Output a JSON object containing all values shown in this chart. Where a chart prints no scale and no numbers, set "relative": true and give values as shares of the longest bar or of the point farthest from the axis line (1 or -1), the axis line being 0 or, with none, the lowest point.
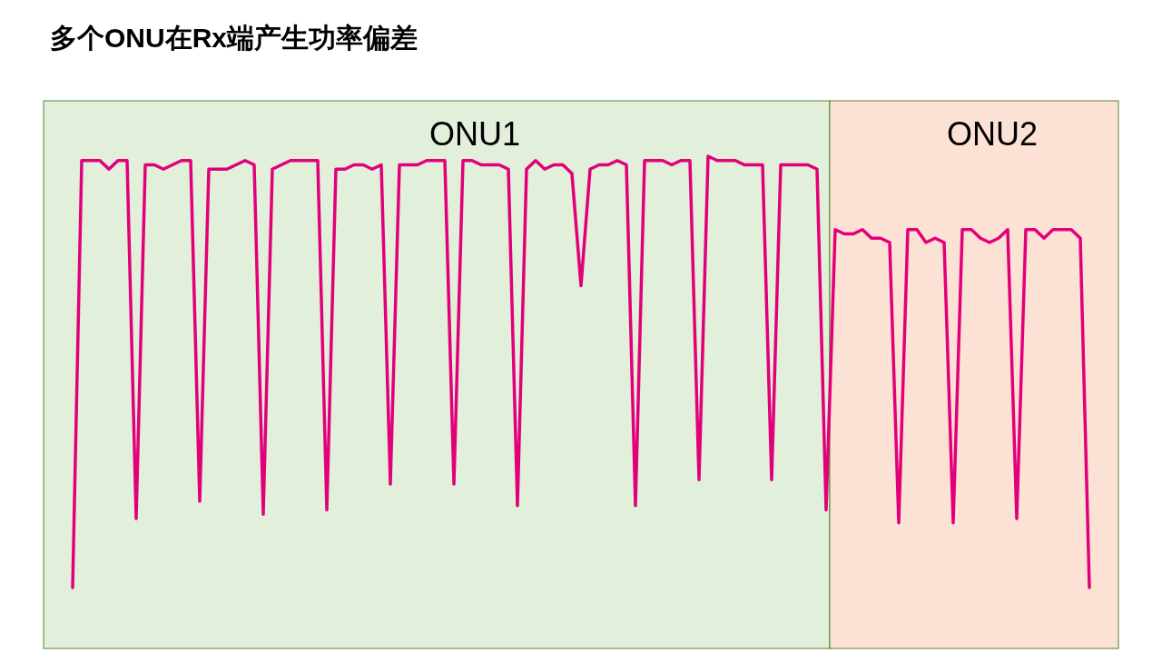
{
  "chart_data": {
    "type": "line",
    "title": "多个ONU在Rx端产生功率偏差",
    "relative": true,
    "categories": [
      null,
      null,
      null,
      null,
      null,
      null,
      null,
      null,
      null,
      null,
      null,
      null,
      null,
      null,
      null,
      null,
      null,
      null,
      null,
      null,
      null,
      null,
      null,
      null,
      null,
      null,
      null,
      null,
      null,
      null,
      null,
      null,
      null,
      null,
      null,
      null,
      null,
      null,
      null,
      null,
      null,
      null,
      null,
      null,
      null,
      null,
      null,
      null,
      null,
      null,
      null,
      null,
      null,
      null,
      null,
      null,
      null,
      null,
      null,
      null,
      null,
      null,
      null,
      null,
      null,
      null,
      null,
      null,
      null,
      null,
      null,
      null,
      null,
      null,
      null,
      null,
      null,
      null,
      null,
      null,
      null,
      null,
      null,
      null,
      null,
      null,
      null,
      null,
      null,
      null,
      null,
      null,
      null,
      null,
      null,
      null,
      null,
      null,
      null,
      null,
      null,
      null,
      null,
      null,
      null,
      null,
      null,
      null,
      null,
      null,
      null,
      null,
      null
    ],
    "series": [
      {
        "color": "#e2007a",
        "values": [
          0,
          0.99,
          0.99,
          0.99,
          0.97,
          0.99,
          0.99,
          0.16,
          0.98,
          0.98,
          0.97,
          0.98,
          0.99,
          0.99,
          0.2,
          0.97,
          0.97,
          0.97,
          0.98,
          0.99,
          0.98,
          0.17,
          0.97,
          0.98,
          0.99,
          0.99,
          0.99,
          0.99,
          0.18,
          0.97,
          0.97,
          0.98,
          0.98,
          0.97,
          0.98,
          0.24,
          0.98,
          0.98,
          0.98,
          0.99,
          0.99,
          0.99,
          0.24,
          0.99,
          0.99,
          0.98,
          0.98,
          0.98,
          0.97,
          0.19,
          0.97,
          0.99,
          0.97,
          0.98,
          0.98,
          0.96,
          0.7,
          0.97,
          0.98,
          0.98,
          0.99,
          0.98,
          0.19,
          0.99,
          0.99,
          0.99,
          0.98,
          0.99,
          0.99,
          0.25,
          1,
          0.99,
          0.99,
          0.99,
          0.98,
          0.98,
          0.98,
          0.25,
          0.98,
          0.98,
          0.98,
          0.98,
          0.97,
          0.18,
          0.83,
          0.82,
          0.82,
          0.83,
          0.81,
          0.81,
          0.8,
          0.15,
          0.83,
          0.83,
          0.8,
          0.81,
          0.8,
          0.15,
          0.83,
          0.83,
          0.81,
          0.8,
          0.81,
          0.83,
          0.16,
          0.83,
          0.83,
          0.81,
          0.83,
          0.83,
          0.83,
          0.81,
          0
        ]
      }
    ],
    "annotations": [
      "ONU1",
      "ONU2"
    ]
  }
}
